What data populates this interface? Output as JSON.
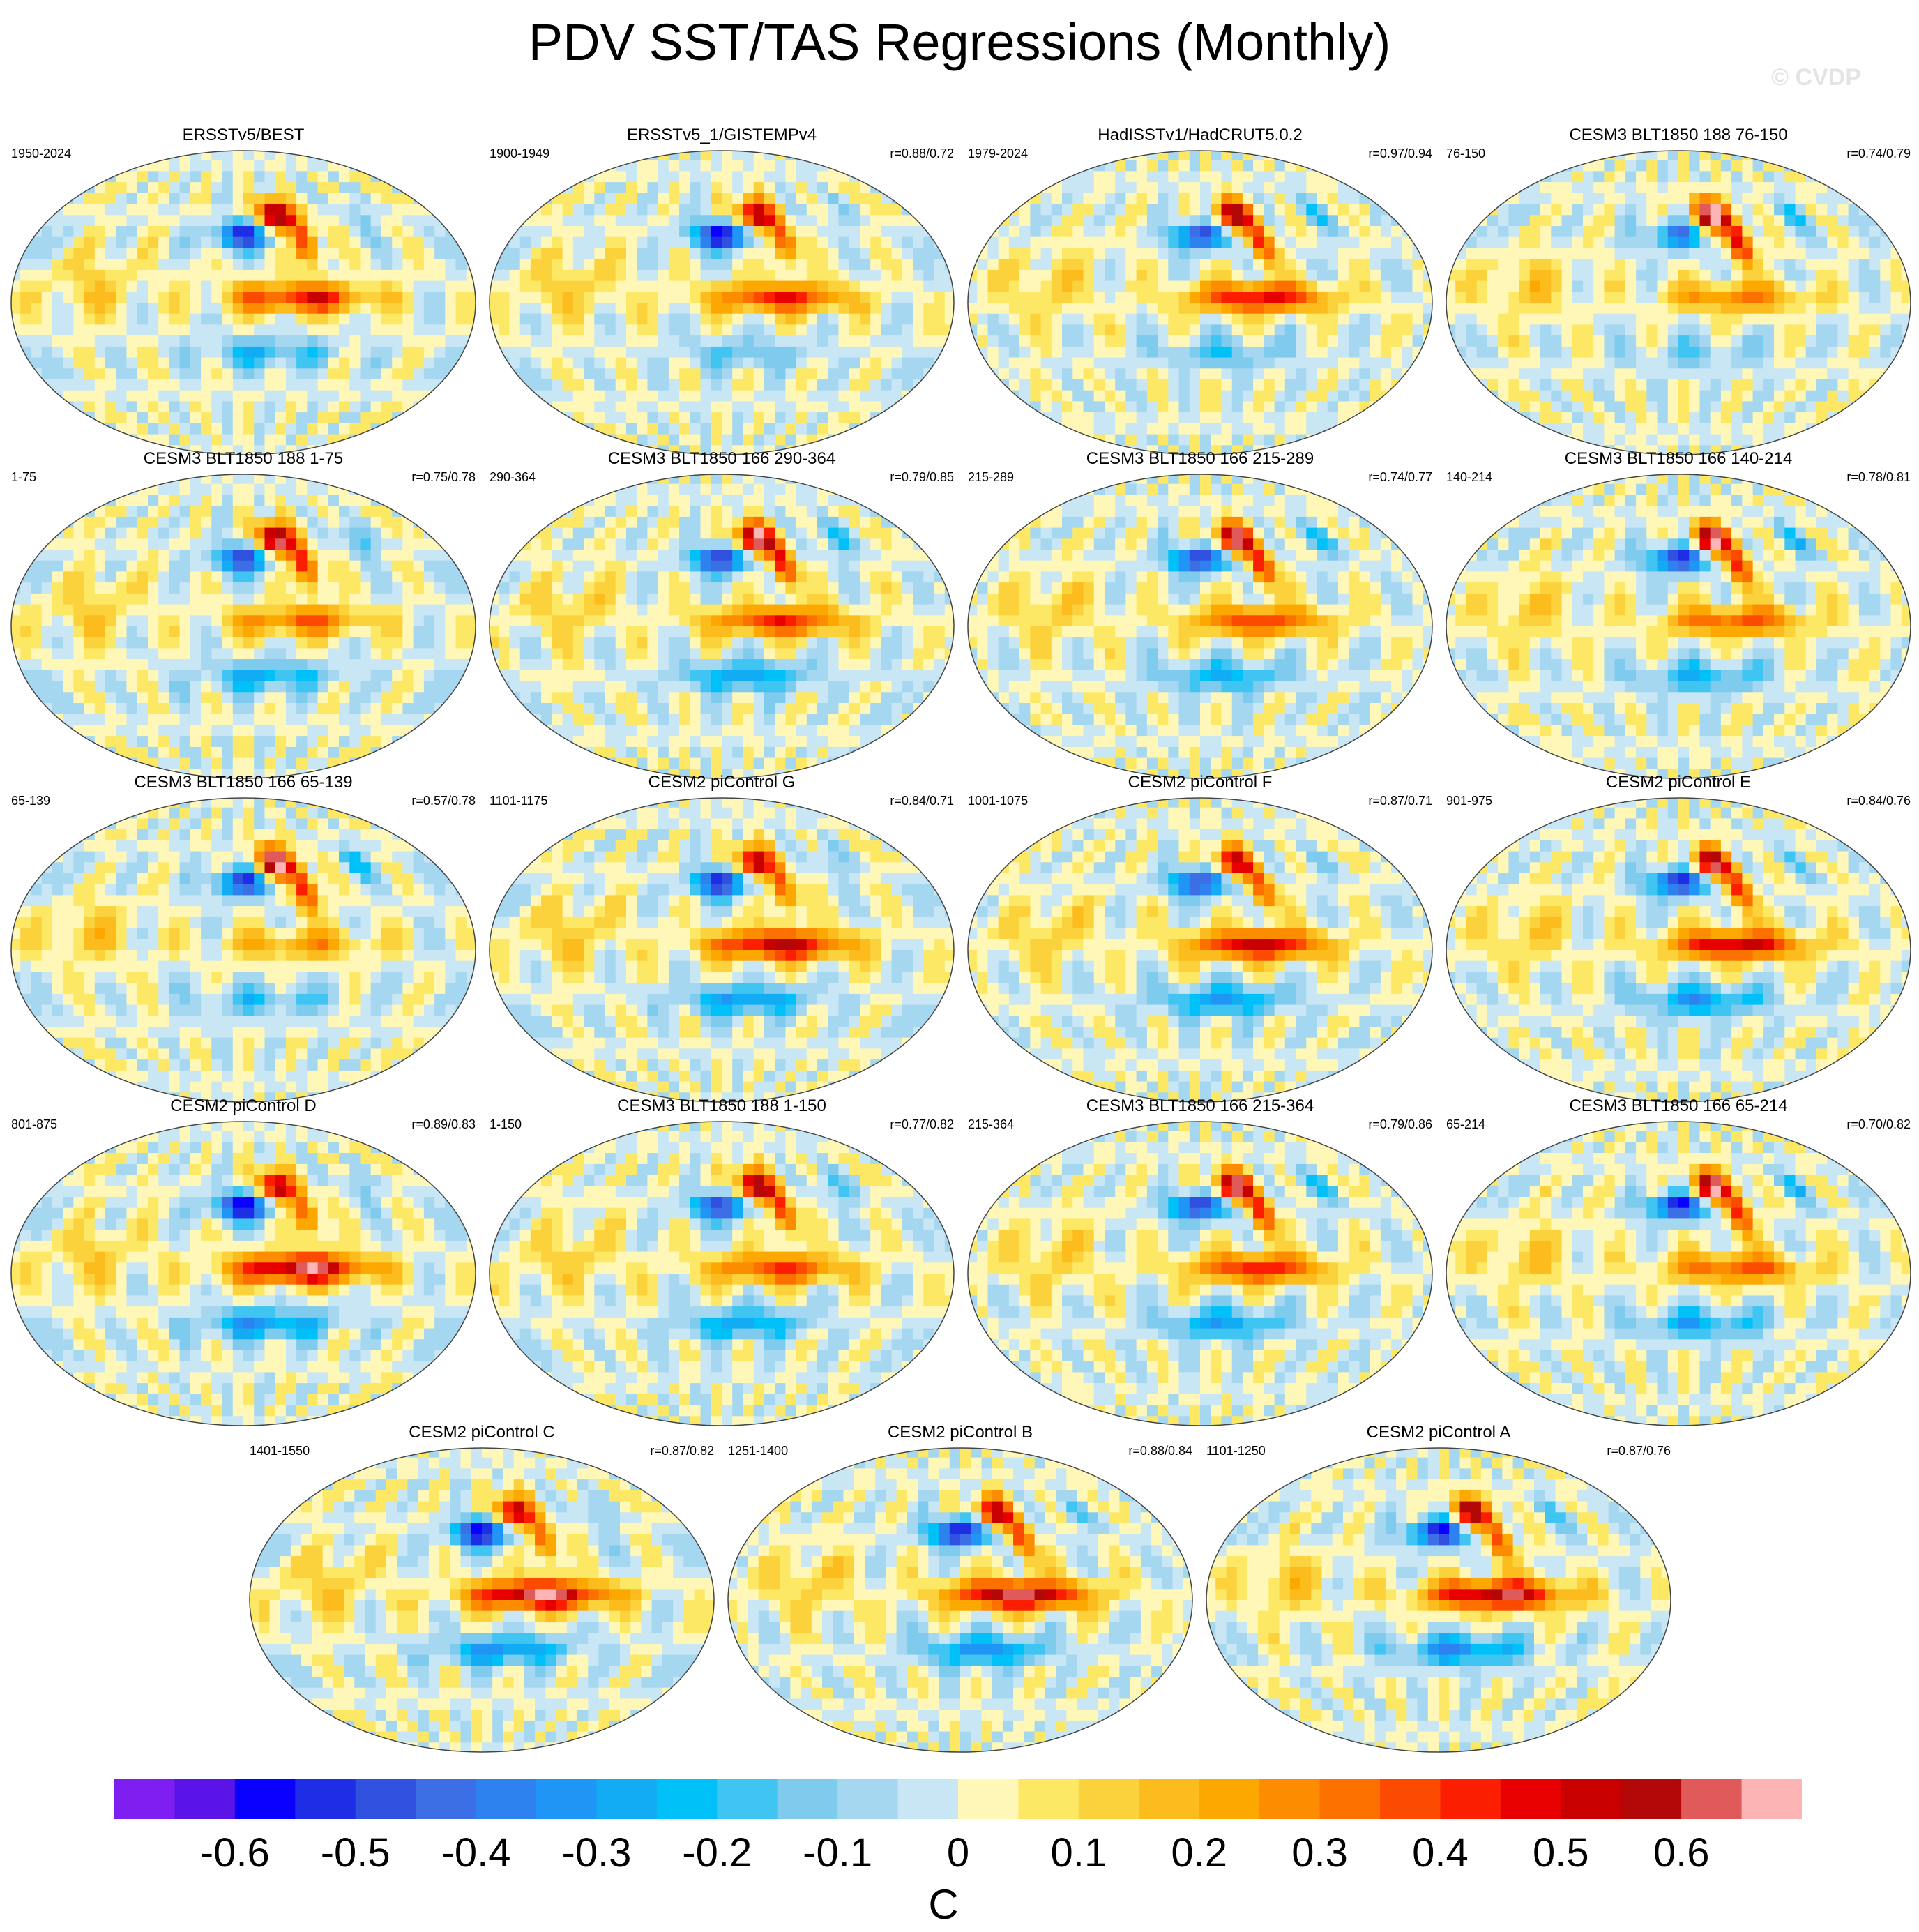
{
  "title": "PDV SST/TAS Regressions (Monthly)",
  "watermark": "© CVDP",
  "chart_data": {
    "type": "map",
    "variable": "PDV SST/TAS regression",
    "units": "C",
    "colorbar": {
      "colors": [
        "#7e1ef0",
        "#5a14e8",
        "#0a00ff",
        "#1e2de6",
        "#3050e0",
        "#3c6ee6",
        "#2e82f0",
        "#1f96f5",
        "#12acf5",
        "#00c0f8",
        "#40c4f2",
        "#7ecbee",
        "#a6d7f0",
        "#c8e6f4",
        "#fff7b8",
        "#fce865",
        "#fcd23c",
        "#fcbc1e",
        "#fca800",
        "#fc8c00",
        "#fc7000",
        "#fc4a00",
        "#fc1e00",
        "#e80000",
        "#c80000",
        "#b40808",
        "#e05a5a",
        "#fcb4b4"
      ],
      "tick_labels": [
        "-0.6",
        "-0.5",
        "-0.4",
        "-0.3",
        "-0.2",
        "-0.1",
        "0",
        "0.1",
        "0.2",
        "0.3",
        "0.4",
        "0.5",
        "0.6"
      ],
      "range": [
        -0.7,
        0.7
      ],
      "interval": 0.05
    },
    "panels": [
      {
        "title": "ERSSTv5/BEST",
        "period": "1950-2024",
        "corr": ""
      },
      {
        "title": "ERSSTv5_1/GISTEMPv4",
        "period": "1900-1949",
        "corr": "r=0.88/0.72"
      },
      {
        "title": "HadISSTv1/HadCRUT5.0.2",
        "period": "1979-2024",
        "corr": "r=0.97/0.94"
      },
      {
        "title": "CESM3 BLT1850 188 76-150",
        "period": "76-150",
        "corr": "r=0.74/0.79"
      },
      {
        "title": "CESM3 BLT1850 188 1-75",
        "period": "1-75",
        "corr": "r=0.75/0.78"
      },
      {
        "title": "CESM3 BLT1850 166 290-364",
        "period": "290-364",
        "corr": "r=0.79/0.85"
      },
      {
        "title": "CESM3 BLT1850 166 215-289",
        "period": "215-289",
        "corr": "r=0.74/0.77"
      },
      {
        "title": "CESM3 BLT1850 166 140-214",
        "period": "140-214",
        "corr": "r=0.78/0.81"
      },
      {
        "title": "CESM3 BLT1850 166 65-139",
        "period": "65-139",
        "corr": "r=0.57/0.78"
      },
      {
        "title": "CESM2 piControl G",
        "period": "1101-1175",
        "corr": "r=0.84/0.71"
      },
      {
        "title": "CESM2 piControl F",
        "period": "1001-1075",
        "corr": "r=0.87/0.71"
      },
      {
        "title": "CESM2 piControl E",
        "period": "901-975",
        "corr": "r=0.84/0.76"
      },
      {
        "title": "CESM2 piControl D",
        "period": "801-875",
        "corr": "r=0.89/0.83"
      },
      {
        "title": "CESM3 BLT1850 188 1-150",
        "period": "1-150",
        "corr": "r=0.77/0.82"
      },
      {
        "title": "CESM3 BLT1850 166 215-364",
        "period": "215-364",
        "corr": "r=0.79/0.86"
      },
      {
        "title": "CESM3 BLT1850 166 65-214",
        "period": "65-214",
        "corr": "r=0.70/0.82"
      },
      {
        "title": "CESM2 piControl C",
        "period": "1401-1550",
        "corr": "r=0.87/0.82"
      },
      {
        "title": "CESM2 piControl B",
        "period": "1251-1400",
        "corr": "r=0.88/0.84"
      },
      {
        "title": "CESM2 piControl A",
        "period": "1101-1250",
        "corr": "r=0.87/0.76"
      }
    ]
  }
}
